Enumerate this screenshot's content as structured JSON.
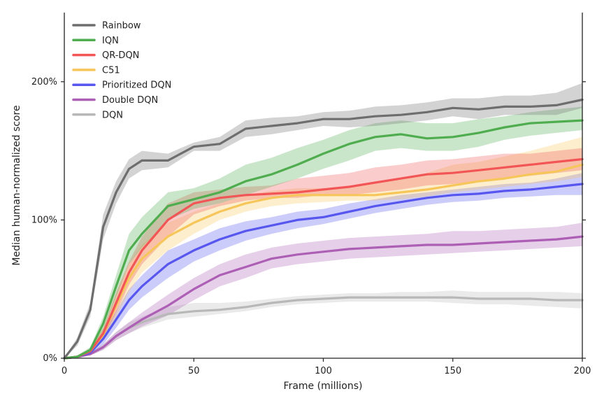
{
  "chart_data": {
    "type": "line",
    "title": "",
    "xlabel": "Frame (millions)",
    "ylabel": "Median human-normalized score",
    "xlim": [
      0,
      200
    ],
    "ylim": [
      0,
      250
    ],
    "x_ticks": [
      0,
      50,
      100,
      150,
      200
    ],
    "x_tick_labels": [
      "0",
      "50",
      "100",
      "150",
      "200"
    ],
    "y_ticks": [
      0,
      100,
      200
    ],
    "y_tick_labels": [
      "0%",
      "100%",
      "200%"
    ],
    "grid": false,
    "legend_position": "top-left",
    "x": [
      0,
      5,
      10,
      15,
      20,
      25,
      30,
      40,
      50,
      60,
      70,
      80,
      90,
      100,
      110,
      120,
      130,
      140,
      150,
      160,
      170,
      180,
      190,
      200
    ],
    "series": [
      {
        "name": "Rainbow",
        "color": "#6e6e6e",
        "values": [
          0,
          12,
          35,
          95,
          120,
          137,
          143,
          143,
          153,
          155,
          166,
          168,
          170,
          173,
          173,
          175,
          176,
          178,
          181,
          180,
          182,
          182,
          183,
          187
        ],
        "lower": [
          0,
          9,
          30,
          86,
          112,
          130,
          136,
          138,
          150,
          150,
          160,
          162,
          165,
          168,
          167,
          168,
          170,
          172,
          175,
          173,
          176,
          176,
          176,
          181
        ],
        "upper": [
          0,
          15,
          40,
          104,
          128,
          144,
          150,
          148,
          156,
          160,
          172,
          174,
          175,
          178,
          179,
          182,
          183,
          185,
          188,
          188,
          190,
          190,
          192,
          199
        ]
      },
      {
        "name": "IQN",
        "color": "#4fad4f",
        "values": [
          0,
          1,
          6,
          25,
          52,
          78,
          90,
          110,
          115,
          120,
          128,
          133,
          140,
          148,
          155,
          160,
          162,
          159,
          160,
          163,
          167,
          170,
          171,
          172
        ],
        "lower": [
          0,
          1,
          5,
          20,
          44,
          68,
          80,
          100,
          108,
          112,
          118,
          124,
          130,
          137,
          143,
          150,
          152,
          150,
          150,
          153,
          158,
          161,
          163,
          165
        ],
        "upper": [
          0,
          2,
          8,
          30,
          60,
          90,
          102,
          120,
          123,
          130,
          140,
          145,
          152,
          158,
          165,
          170,
          172,
          170,
          170,
          173,
          175,
          178,
          180,
          182
        ]
      },
      {
        "name": "QR-DQN",
        "color": "#f25555",
        "values": [
          0,
          1,
          5,
          18,
          40,
          62,
          78,
          100,
          112,
          116,
          118,
          119,
          120,
          122,
          124,
          127,
          130,
          133,
          134,
          136,
          138,
          140,
          142,
          144
        ],
        "lower": [
          0,
          1,
          4,
          14,
          33,
          53,
          68,
          88,
          104,
          110,
          114,
          116,
          116,
          118,
          118,
          120,
          122,
          125,
          126,
          128,
          130,
          132,
          134,
          136
        ],
        "upper": [
          0,
          2,
          7,
          22,
          48,
          70,
          88,
          112,
          120,
          122,
          124,
          125,
          130,
          132,
          134,
          138,
          140,
          143,
          144,
          146,
          148,
          148,
          150,
          152
        ]
      },
      {
        "name": "C51",
        "color": "#f7c65a",
        "values": [
          0,
          1,
          5,
          17,
          38,
          58,
          72,
          88,
          98,
          106,
          112,
          116,
          118,
          118,
          118,
          118,
          120,
          122,
          125,
          128,
          130,
          133,
          135,
          140
        ],
        "lower": [
          0,
          1,
          4,
          13,
          30,
          48,
          62,
          78,
          90,
          100,
          106,
          110,
          112,
          113,
          114,
          114,
          115,
          117,
          120,
          122,
          124,
          126,
          128,
          131
        ],
        "upper": [
          0,
          2,
          7,
          21,
          46,
          68,
          82,
          98,
          106,
          112,
          118,
          121,
          123,
          123,
          124,
          126,
          130,
          134,
          140,
          142,
          146,
          150,
          155,
          160
        ]
      },
      {
        "name": "Prioritized DQN",
        "color": "#5757ef",
        "values": [
          0,
          1,
          4,
          14,
          28,
          42,
          52,
          68,
          78,
          86,
          92,
          96,
          100,
          102,
          106,
          110,
          113,
          116,
          118,
          119,
          121,
          122,
          124,
          126
        ],
        "lower": [
          0,
          1,
          3,
          10,
          22,
          35,
          44,
          58,
          70,
          78,
          85,
          90,
          94,
          97,
          101,
          105,
          108,
          111,
          113,
          114,
          116,
          117,
          118,
          118
        ],
        "upper": [
          0,
          2,
          6,
          18,
          34,
          50,
          60,
          78,
          86,
          94,
          99,
          102,
          106,
          108,
          112,
          115,
          118,
          120,
          122,
          124,
          126,
          127,
          130,
          134
        ]
      },
      {
        "name": "Double DQN",
        "color": "#ad5fb5",
        "values": [
          0,
          1,
          3,
          8,
          16,
          22,
          28,
          38,
          50,
          60,
          66,
          72,
          75,
          77,
          79,
          80,
          81,
          82,
          82,
          83,
          84,
          85,
          86,
          88
        ],
        "lower": [
          0,
          1,
          2,
          6,
          13,
          18,
          23,
          31,
          42,
          52,
          58,
          65,
          68,
          70,
          72,
          73,
          74,
          75,
          76,
          77,
          78,
          79,
          80,
          81
        ],
        "upper": [
          0,
          2,
          4,
          10,
          19,
          26,
          33,
          46,
          58,
          68,
          75,
          80,
          83,
          85,
          87,
          88,
          89,
          90,
          92,
          92,
          93,
          94,
          95,
          98
        ]
      },
      {
        "name": "DQN",
        "color": "#b8b8b8",
        "values": [
          0,
          1,
          3,
          8,
          16,
          22,
          26,
          32,
          34,
          35,
          37,
          40,
          42,
          43,
          44,
          44,
          44,
          44,
          44,
          43,
          43,
          43,
          42,
          42
        ],
        "lower": [
          0,
          1,
          2,
          6,
          13,
          18,
          22,
          28,
          30,
          32,
          34,
          37,
          39,
          40,
          41,
          41,
          41,
          41,
          40,
          39,
          39,
          38,
          37,
          36
        ],
        "upper": [
          0,
          2,
          4,
          10,
          19,
          26,
          30,
          37,
          40,
          40,
          41,
          43,
          45,
          46,
          47,
          47,
          48,
          48,
          49,
          48,
          48,
          48,
          48,
          47
        ]
      }
    ]
  }
}
